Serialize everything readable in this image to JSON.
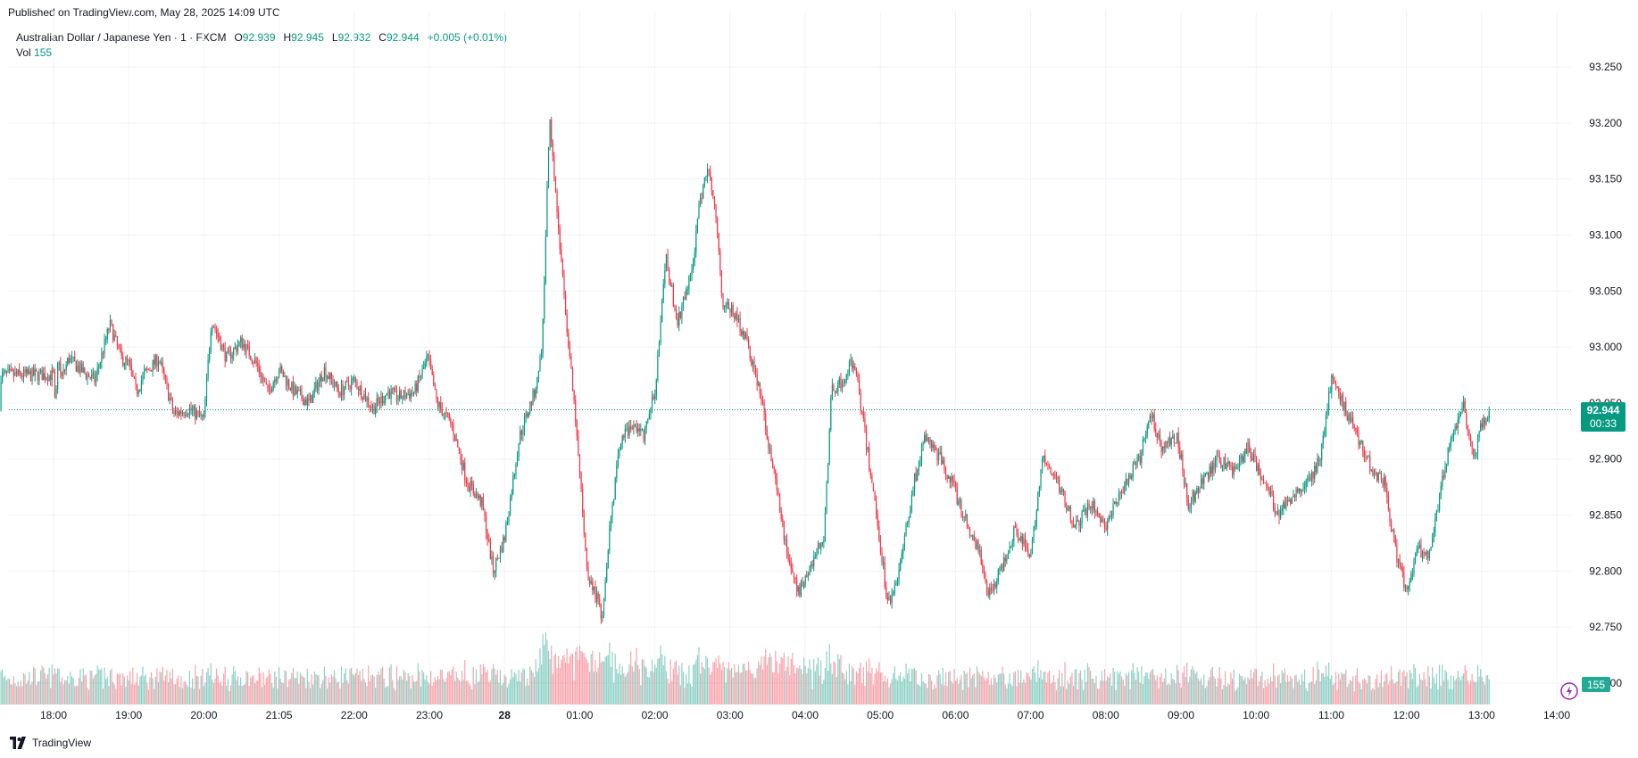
{
  "published": "Published on TradingView.com, May 28, 2025 14:09 UTC",
  "legend": {
    "symbol": "Australian Dollar / Japanese Yen · 1 · FXCM",
    "o_label": "O",
    "o_value": "92.939",
    "h_label": "H",
    "h_value": "92.945",
    "l_label": "L",
    "l_value": "92.932",
    "c_label": "C",
    "c_value": "92.944",
    "change": "+0.005 (+0.01%)",
    "vol_label": "Vol",
    "vol_value": "155"
  },
  "price_badge": {
    "price": "92.944",
    "countdown": "00:33"
  },
  "vol_badge": "155",
  "footer": {
    "brand": "TradingView"
  },
  "colors": {
    "up": "#089981",
    "down": "#f23645",
    "grid": "#f0f3fa",
    "text": "#131722"
  },
  "chart_data": {
    "type": "candlestick",
    "y_ticks": [
      "93.250",
      "93.200",
      "93.150",
      "93.100",
      "93.050",
      "93.000",
      "92.950",
      "92.900",
      "92.850",
      "92.800",
      "92.750",
      "92.700"
    ],
    "ylim": [
      92.7,
      93.25
    ],
    "x_ticks": [
      "18:00",
      "19:00",
      "20:00",
      "21:05",
      "22:00",
      "23:00",
      "28",
      "01:00",
      "02:00",
      "03:00",
      "04:00",
      "05:00",
      "06:00",
      "07:00",
      "08:00",
      "09:00",
      "10:00",
      "11:00",
      "12:00",
      "13:00",
      "14:00"
    ],
    "last_price": 92.944,
    "close_path": [
      [
        0,
        92.975
      ],
      [
        0.025,
        92.94
      ],
      [
        0.05,
        92.98
      ],
      [
        0.075,
        92.99
      ],
      [
        0.1,
        92.97
      ],
      [
        0.2,
        92.99
      ],
      [
        0.35,
        92.98
      ],
      [
        0.55,
        92.97
      ],
      [
        0.75,
        93.02
      ],
      [
        0.9,
        92.99
      ],
      [
        1.0,
        92.985
      ],
      [
        1.1,
        92.96
      ],
      [
        1.2,
        92.975
      ],
      [
        1.4,
        92.99
      ],
      [
        1.6,
        92.94
      ],
      [
        1.8,
        92.945
      ],
      [
        2.0,
        92.935
      ],
      [
        2.1,
        93.025
      ],
      [
        2.3,
        92.99
      ],
      [
        2.5,
        93.005
      ],
      [
        2.7,
        92.985
      ],
      [
        2.85,
        92.96
      ],
      [
        3.0,
        92.98
      ],
      [
        3.2,
        92.96
      ],
      [
        3.4,
        92.95
      ],
      [
        3.6,
        92.98
      ],
      [
        3.8,
        92.96
      ],
      [
        4.0,
        92.97
      ],
      [
        4.25,
        92.945
      ],
      [
        4.45,
        92.96
      ],
      [
        4.6,
        92.955
      ],
      [
        4.8,
        92.96
      ],
      [
        4.98,
        92.99
      ],
      [
        5.1,
        92.95
      ],
      [
        5.3,
        92.93
      ],
      [
        5.5,
        92.88
      ],
      [
        5.7,
        92.86
      ],
      [
        5.85,
        92.8
      ],
      [
        6.0,
        92.83
      ],
      [
        6.2,
        92.92
      ],
      [
        6.4,
        92.96
      ],
      [
        6.5,
        93.0
      ],
      [
        6.6,
        93.21
      ],
      [
        6.7,
        93.12
      ],
      [
        6.8,
        93.04
      ],
      [
        6.95,
        92.93
      ],
      [
        7.1,
        92.8
      ],
      [
        7.3,
        92.76
      ],
      [
        7.4,
        92.84
      ],
      [
        7.55,
        92.92
      ],
      [
        7.75,
        92.93
      ],
      [
        7.85,
        92.92
      ],
      [
        8.0,
        92.96
      ],
      [
        8.15,
        93.08
      ],
      [
        8.3,
        93.02
      ],
      [
        8.5,
        93.07
      ],
      [
        8.6,
        93.13
      ],
      [
        8.7,
        93.16
      ],
      [
        8.8,
        93.13
      ],
      [
        8.9,
        93.04
      ],
      [
        9.05,
        93.03
      ],
      [
        9.2,
        93.01
      ],
      [
        9.4,
        92.96
      ],
      [
        9.55,
        92.9
      ],
      [
        9.75,
        92.82
      ],
      [
        9.9,
        92.78
      ],
      [
        10.1,
        92.81
      ],
      [
        10.25,
        92.83
      ],
      [
        10.35,
        92.96
      ],
      [
        10.5,
        92.97
      ],
      [
        10.65,
        92.99
      ],
      [
        10.8,
        92.92
      ],
      [
        10.95,
        92.85
      ],
      [
        11.1,
        92.77
      ],
      [
        11.25,
        92.8
      ],
      [
        11.45,
        92.88
      ],
      [
        11.6,
        92.92
      ],
      [
        11.8,
        92.9
      ],
      [
        11.95,
        92.88
      ],
      [
        12.1,
        92.85
      ],
      [
        12.3,
        92.82
      ],
      [
        12.45,
        92.78
      ],
      [
        12.6,
        92.8
      ],
      [
        12.8,
        92.84
      ],
      [
        13.0,
        92.81
      ],
      [
        13.15,
        92.9
      ],
      [
        13.35,
        92.88
      ],
      [
        13.6,
        92.84
      ],
      [
        13.8,
        92.86
      ],
      [
        14.0,
        92.84
      ],
      [
        14.2,
        92.87
      ],
      [
        14.45,
        92.9
      ],
      [
        14.6,
        92.94
      ],
      [
        14.75,
        92.91
      ],
      [
        14.95,
        92.92
      ],
      [
        15.1,
        92.86
      ],
      [
        15.3,
        92.88
      ],
      [
        15.5,
        92.9
      ],
      [
        15.7,
        92.89
      ],
      [
        15.9,
        92.91
      ],
      [
        16.1,
        92.88
      ],
      [
        16.3,
        92.85
      ],
      [
        16.5,
        92.87
      ],
      [
        16.7,
        92.88
      ],
      [
        16.85,
        92.9
      ],
      [
        17.0,
        92.97
      ],
      [
        17.15,
        92.95
      ],
      [
        17.35,
        92.92
      ],
      [
        17.55,
        92.89
      ],
      [
        17.7,
        92.88
      ],
      [
        17.85,
        92.82
      ],
      [
        18.0,
        92.78
      ],
      [
        18.15,
        92.82
      ],
      [
        18.3,
        92.81
      ],
      [
        18.45,
        92.87
      ],
      [
        18.6,
        92.92
      ],
      [
        18.75,
        92.95
      ],
      [
        18.9,
        92.9
      ],
      [
        19.0,
        92.93
      ],
      [
        19.1,
        92.944
      ]
    ],
    "volume_range": [
      0,
      280
    ]
  }
}
